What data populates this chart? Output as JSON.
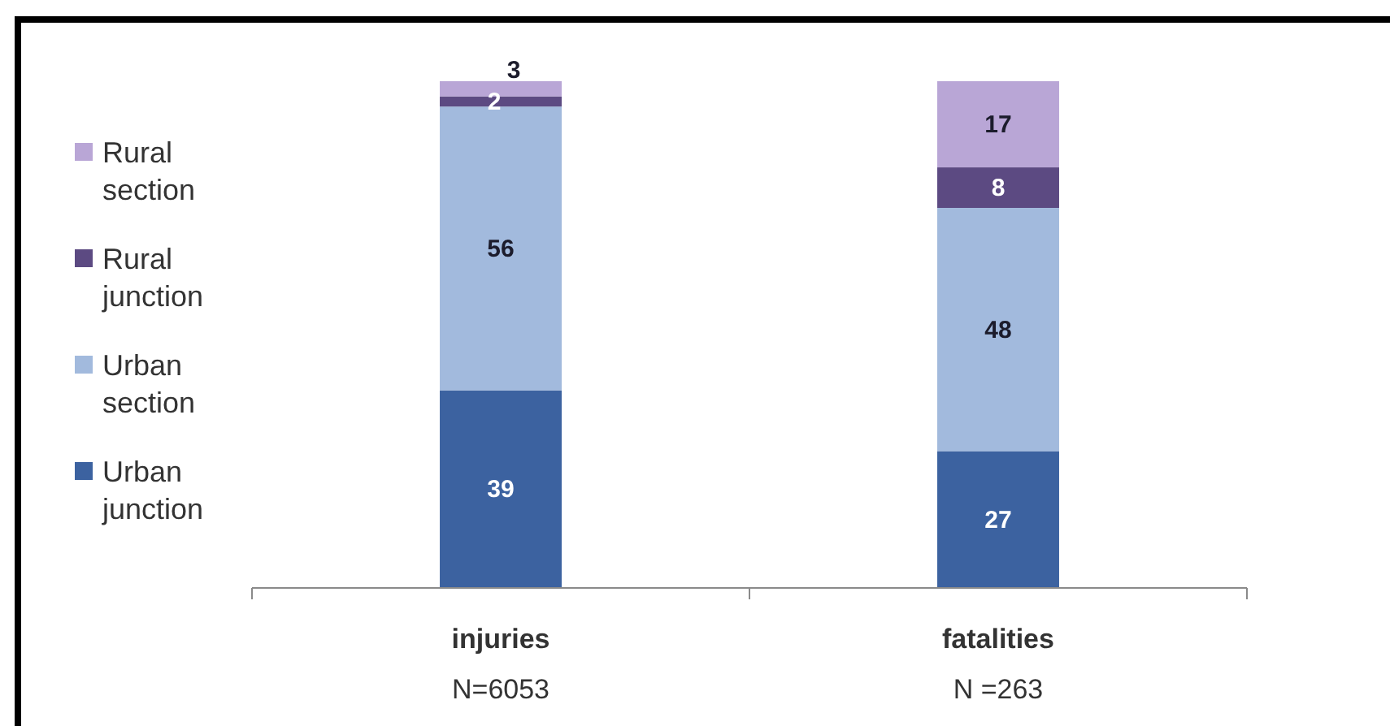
{
  "chart_data": {
    "type": "bar",
    "stacked": true,
    "categories": [
      "injuries",
      "fatalities"
    ],
    "series": [
      {
        "name": "Urban junction",
        "color": "#3c62a0",
        "values": [
          39,
          27
        ]
      },
      {
        "name": "Urban section",
        "color": "#a2badd",
        "values": [
          56,
          48
        ]
      },
      {
        "name": "Rural junction",
        "color": "#5c4a82",
        "values": [
          2,
          8
        ]
      },
      {
        "name": "Rural section",
        "color": "#b9a6d6",
        "values": [
          3,
          17
        ]
      }
    ],
    "data_labels": true,
    "legend": "left",
    "annotations": [
      "N=6053",
      "N =263"
    ]
  }
}
